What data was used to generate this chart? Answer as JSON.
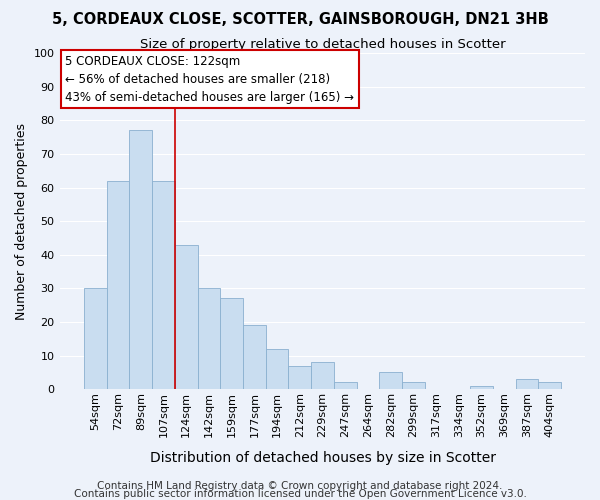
{
  "title": "5, CORDEAUX CLOSE, SCOTTER, GAINSBOROUGH, DN21 3HB",
  "subtitle": "Size of property relative to detached houses in Scotter",
  "xlabel": "Distribution of detached houses by size in Scotter",
  "ylabel": "Number of detached properties",
  "bar_labels": [
    "54sqm",
    "72sqm",
    "89sqm",
    "107sqm",
    "124sqm",
    "142sqm",
    "159sqm",
    "177sqm",
    "194sqm",
    "212sqm",
    "229sqm",
    "247sqm",
    "264sqm",
    "282sqm",
    "299sqm",
    "317sqm",
    "334sqm",
    "352sqm",
    "369sqm",
    "387sqm",
    "404sqm"
  ],
  "bar_values": [
    30,
    62,
    77,
    62,
    43,
    30,
    27,
    19,
    12,
    7,
    8,
    2,
    0,
    5,
    2,
    0,
    0,
    1,
    0,
    3,
    2
  ],
  "bar_color": "#c9ddf0",
  "bar_edge_color": "#8ab0d0",
  "highlight_bar_index": 4,
  "highlight_line_color": "#cc0000",
  "annotation_line1": "5 CORDEAUX CLOSE: 122sqm",
  "annotation_line2": "← 56% of detached houses are smaller (218)",
  "annotation_line3": "43% of semi-detached houses are larger (165) →",
  "ylim": [
    0,
    100
  ],
  "yticks": [
    0,
    10,
    20,
    30,
    40,
    50,
    60,
    70,
    80,
    90,
    100
  ],
  "footer1": "Contains HM Land Registry data © Crown copyright and database right 2024.",
  "footer2": "Contains public sector information licensed under the Open Government Licence v3.0.",
  "background_color": "#edf2fa",
  "grid_color": "#ffffff",
  "title_fontsize": 10.5,
  "subtitle_fontsize": 9.5,
  "xlabel_fontsize": 10,
  "ylabel_fontsize": 9,
  "tick_fontsize": 8,
  "annotation_fontsize": 8.5,
  "footer_fontsize": 7.5
}
